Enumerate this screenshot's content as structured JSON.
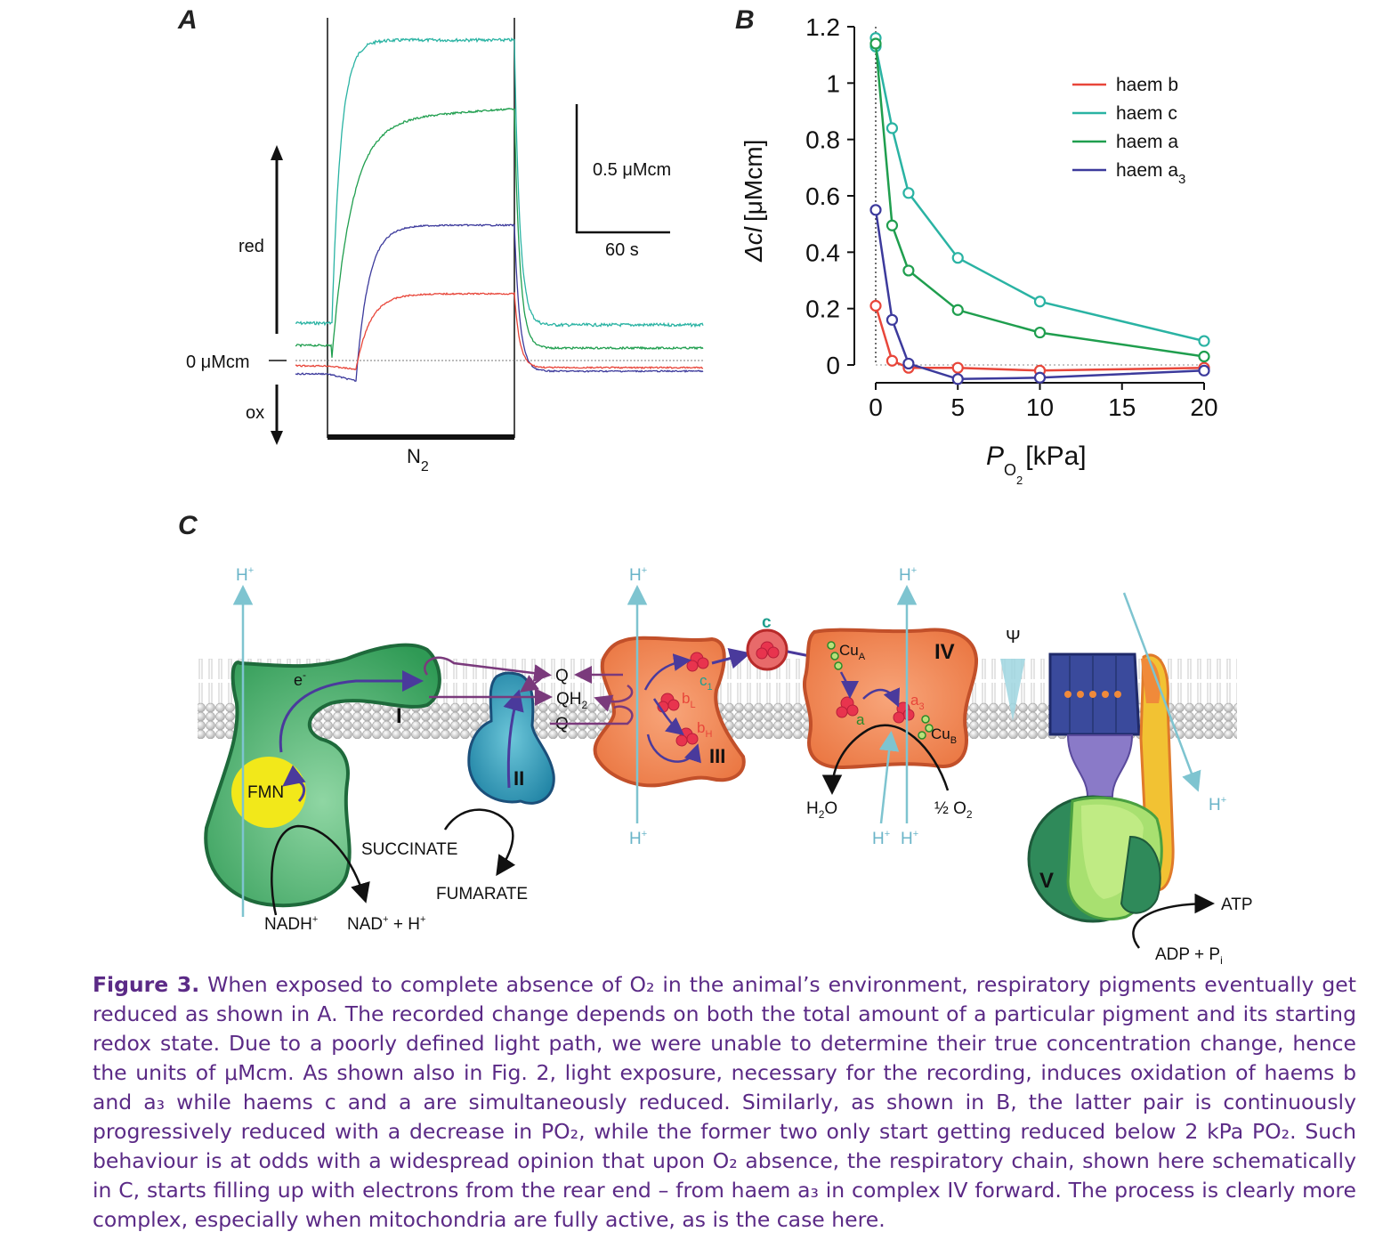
{
  "panels": {
    "a": "A",
    "b": "B",
    "c": "C"
  },
  "panel_a": {
    "red_label": "red",
    "ox_label": "ox",
    "zero_label": "0 μMcm",
    "scale_y_label": "0.5 μMcm",
    "scale_x_label": "60 s",
    "n2_label": "N",
    "n2_sub": "2",
    "colors": {
      "haem_c": "#2ab3a3",
      "haem_a": "#1f9e4e",
      "haem_a3": "#3c3a9c",
      "haem_b": "#e8463a"
    }
  },
  "chart_data": {
    "type": "line",
    "xlabel": "P",
    "xlabel_sub": "O",
    "xlabel_subsub": "2",
    "xlabel_unit": "[kPa]",
    "ylabel_symbol": "Δcl",
    "ylabel_unit": "[μMcm]",
    "xlim": [
      0,
      20
    ],
    "ylim": [
      0,
      1.2
    ],
    "x_ticks": [
      "0",
      "5",
      "10",
      "15",
      "20"
    ],
    "y_ticks": [
      "0",
      "0.2",
      "0.4",
      "0.6",
      "0.8",
      "1",
      "1.2"
    ],
    "legend_position": "top-right",
    "series": [
      {
        "name": "haem b",
        "color": "#e8463a",
        "x": [
          0,
          1,
          2,
          5,
          10,
          20
        ],
        "y": [
          0.21,
          0.015,
          -0.01,
          -0.01,
          -0.02,
          -0.01
        ]
      },
      {
        "name": "haem c",
        "color": "#2ab3a3",
        "x": [
          0,
          0,
          1,
          2,
          5,
          10,
          20
        ],
        "y": [
          1.16,
          1.13,
          0.84,
          0.61,
          0.38,
          0.225,
          0.085
        ]
      },
      {
        "name": "haem a",
        "color": "#1f9e4e",
        "x": [
          0,
          1,
          2,
          5,
          10,
          20
        ],
        "y": [
          1.14,
          0.495,
          0.335,
          0.195,
          0.115,
          0.03
        ]
      },
      {
        "name": "haem a",
        "name_sub": "3",
        "color": "#3c3a9c",
        "x": [
          0,
          1,
          2,
          5,
          10,
          20
        ],
        "y": [
          0.55,
          0.16,
          0.005,
          -0.05,
          -0.045,
          -0.02
        ]
      }
    ]
  },
  "panel_c": {
    "h_plus": "H",
    "h_plus_sup": "+",
    "e_label": "e",
    "e_sup": "-",
    "complex_i": "I",
    "complex_ii": "II",
    "complex_iii": "III",
    "complex_iv": "IV",
    "complex_v": "V",
    "fmn": "FMN",
    "q_top": "Q",
    "qh2": "QH",
    "qh2_sub": "2",
    "q_bottom": "Q",
    "c_label": "c",
    "c1_label": "c",
    "c1_sub": "1",
    "bl_label": "b",
    "bl_sub": "L",
    "bh_label": "b",
    "bh_sub": "H",
    "cua_label": "Cu",
    "cua_sub": "A",
    "cub_label": "Cu",
    "cub_sub": "B",
    "a_label": "a",
    "a3_label": "a",
    "a3_sub": "3",
    "psi": "Ψ",
    "h2o": "H",
    "h2o_sub": "2",
    "h2o_end": "O",
    "half_o2": "½ O",
    "half_o2_sub": "2",
    "nadh": "NADH",
    "nadh_sup": "+",
    "nad": "NAD",
    "nad_sup": "+",
    "nad_rest": " + H",
    "nad_rest_sup": "+",
    "succinate": "SUCCINATE",
    "fumarate": "FUMARATE",
    "atp": "ATP",
    "adp": "ADP + P",
    "adp_sub": "i"
  },
  "caption": {
    "label": "Figure 3.",
    "text": "When exposed to complete absence of O₂ in the animal’s environment, respiratory pigments eventually get reduced as shown in A. The recorded change depends on both the total amount of a particular pigment and its starting redox state. Due to a poorly defined light path, we were unable to determine their true concentration change, hence the units of μMcm. As shown also in Fig. 2, light exposure, necessary for the recording, induces oxidation of haems b and a₃ while haems c and a are simultaneously reduced. Similarly, as shown in B, the latter pair is continuously progressively reduced with a decrease in PO₂, while the former two only start getting reduced below 2 kPa PO₂. Such behaviour is at odds with a widespread opinion that upon O₂ absence, the respiratory chain, shown here schematically in C, starts filling up with electrons from the rear end – from haem a₃ in complex IV forward. The process is clearly more complex, especially when mitochondria are fully active, as is the case here."
  }
}
